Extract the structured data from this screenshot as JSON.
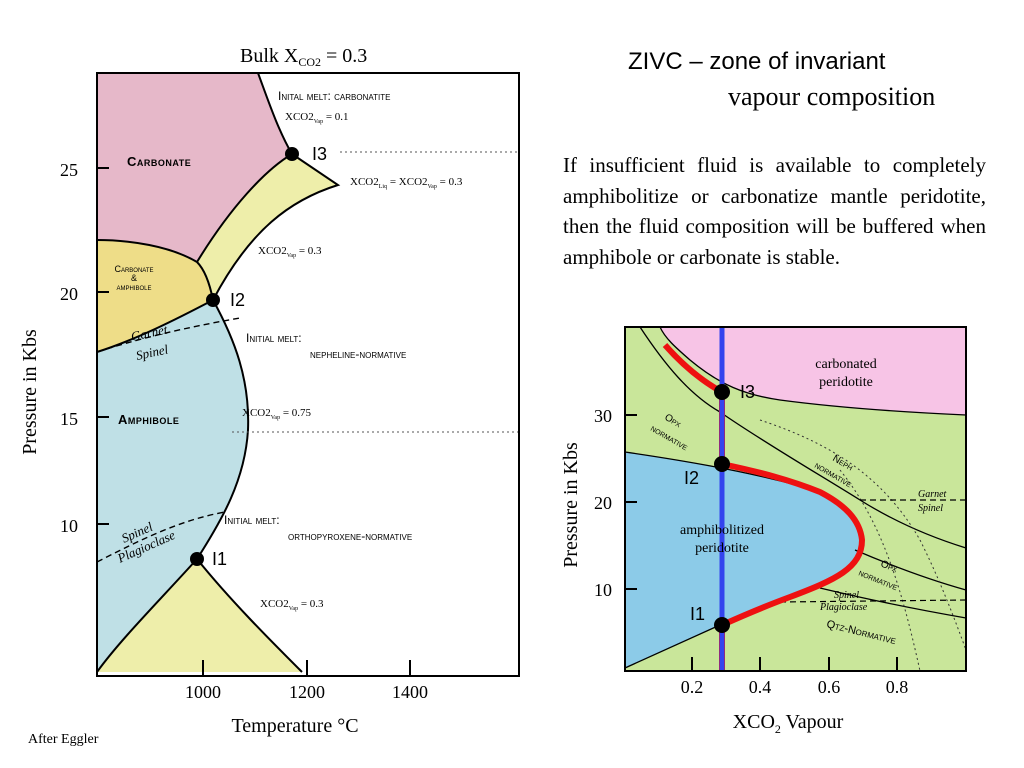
{
  "header": {
    "title_line1": "ZIVC – zone of invariant",
    "title_line2": "vapour composition",
    "description": "If insufficient fluid is available to completely amphibolitize or carbonatize mantle peridotite, then the fluid composition will be buffered when amphibole or carbonate is stable."
  },
  "left_diagram": {
    "title_main": "Bulk X",
    "title_sub": "CO2",
    "title_value": " = 0.3",
    "x_axis_label": "Temperature °C",
    "y_axis_label": "Pressure in Kbs",
    "x_ticks": [
      "1000",
      "1200",
      "1400"
    ],
    "y_ticks": [
      "25",
      "20",
      "15",
      "10"
    ],
    "fields": {
      "carbonate": "Carbonate",
      "carbonate_amphibole_1": "Carbonate",
      "carbonate_amphibole_2": "&",
      "carbonate_amphibole_3": "amphibole",
      "amphibole": "Amphibole"
    },
    "boundaries": {
      "garnet": "Garnet",
      "spinel": "Spinel",
      "spinel_lower": "Spinel",
      "plagioclase": "Plagioclase"
    },
    "points": {
      "i1": "I1",
      "i2": "I2",
      "i3": "I3"
    },
    "melts": {
      "carbonatite": "Inital melt: carbonatite",
      "nepheline_1": "Initial melt:",
      "nepheline_2": "nepheline-normative",
      "opx_1": "Initial melt:",
      "opx_2": "orthopyroxene-normative"
    },
    "vapour_labels": {
      "xco2_prefix": "XCO2",
      "vap_sub": "Vap",
      "liq_sub": "Liq",
      "v01": " = 0.1",
      "v03_top_mid": " = XCO2",
      "v03_top_end": " = 0.3",
      "v03_mid": " = 0.3",
      "v075": " = 0.75",
      "v03_low": " = 0.3"
    }
  },
  "right_diagram": {
    "x_axis_label_main": "XCO",
    "x_axis_label_sub": "2",
    "x_axis_label_end": " Vapour",
    "y_axis_label": "Pressure in Kbs",
    "x_ticks": [
      "0.2",
      "0.4",
      "0.6",
      "0.8"
    ],
    "y_ticks": [
      "30",
      "20",
      "10"
    ],
    "fields": {
      "carbonated_1": "carbonated",
      "carbonated_2": "peridotite",
      "amphibolitized_1": "amphibolitized",
      "amphibolitized_2": "peridotite",
      "opx_top_1": "Opx",
      "opx_top_2": "normative",
      "neph_1": "Neph",
      "neph_2": "normative",
      "opx_low_1": "Opx",
      "opx_low_2": "normative",
      "qtz": "Qtz-Normative",
      "garnet": "Garnet",
      "spinel": "Spinel",
      "spinel_low": "Spinel",
      "plagioclase": "Plagioclase"
    },
    "points": {
      "i1": "I1",
      "i2": "I2",
      "i3": "I3"
    }
  },
  "footer": {
    "credit": "After Eggler"
  },
  "colors": {
    "carbonate_pink": "#e6b8c9",
    "amphibole_blue": "#bfe0e6",
    "melt_yellow": "#eeeeaa",
    "carb_amph_yellow": "#eedd88",
    "right_pink": "#f7c4e6",
    "right_green": "#c9e69a",
    "right_blue": "#8ccbe8",
    "path_red": "#ee1111",
    "path_blue": "#3344ee"
  }
}
